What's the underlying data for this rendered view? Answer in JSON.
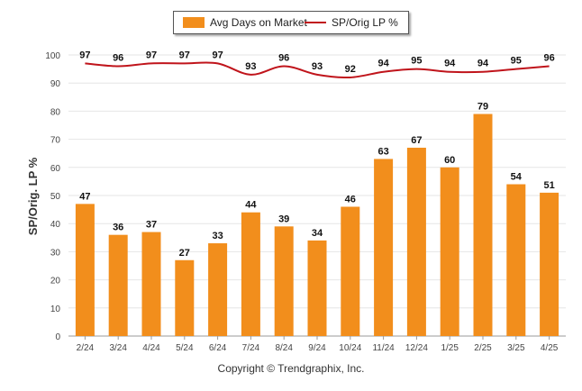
{
  "chart_data": {
    "type": "bar",
    "categories": [
      "2/24",
      "3/24",
      "4/24",
      "5/24",
      "6/24",
      "7/24",
      "8/24",
      "9/24",
      "10/24",
      "11/24",
      "12/24",
      "1/25",
      "2/25",
      "3/25",
      "4/25"
    ],
    "series": [
      {
        "name": "Avg Days on Market",
        "type": "bar",
        "color": "#f28e1c",
        "values": [
          47,
          36,
          37,
          27,
          33,
          44,
          39,
          34,
          46,
          63,
          67,
          60,
          79,
          54,
          51
        ]
      },
      {
        "name": "SP/Orig LP %",
        "type": "line",
        "color": "#c0141b",
        "values": [
          97,
          96,
          97,
          97,
          97,
          93,
          96,
          93,
          92,
          94,
          95,
          94,
          94,
          95,
          96
        ]
      }
    ],
    "ylabel": "SP/Orig. LP %",
    "ylim": [
      0,
      100
    ],
    "yticks": [
      0,
      10,
      20,
      30,
      40,
      50,
      60,
      70,
      80,
      90,
      100
    ],
    "grid": true,
    "legend_position": "top-center"
  },
  "footer": {
    "copyright": "Copyright © Trendgraphix, Inc."
  }
}
